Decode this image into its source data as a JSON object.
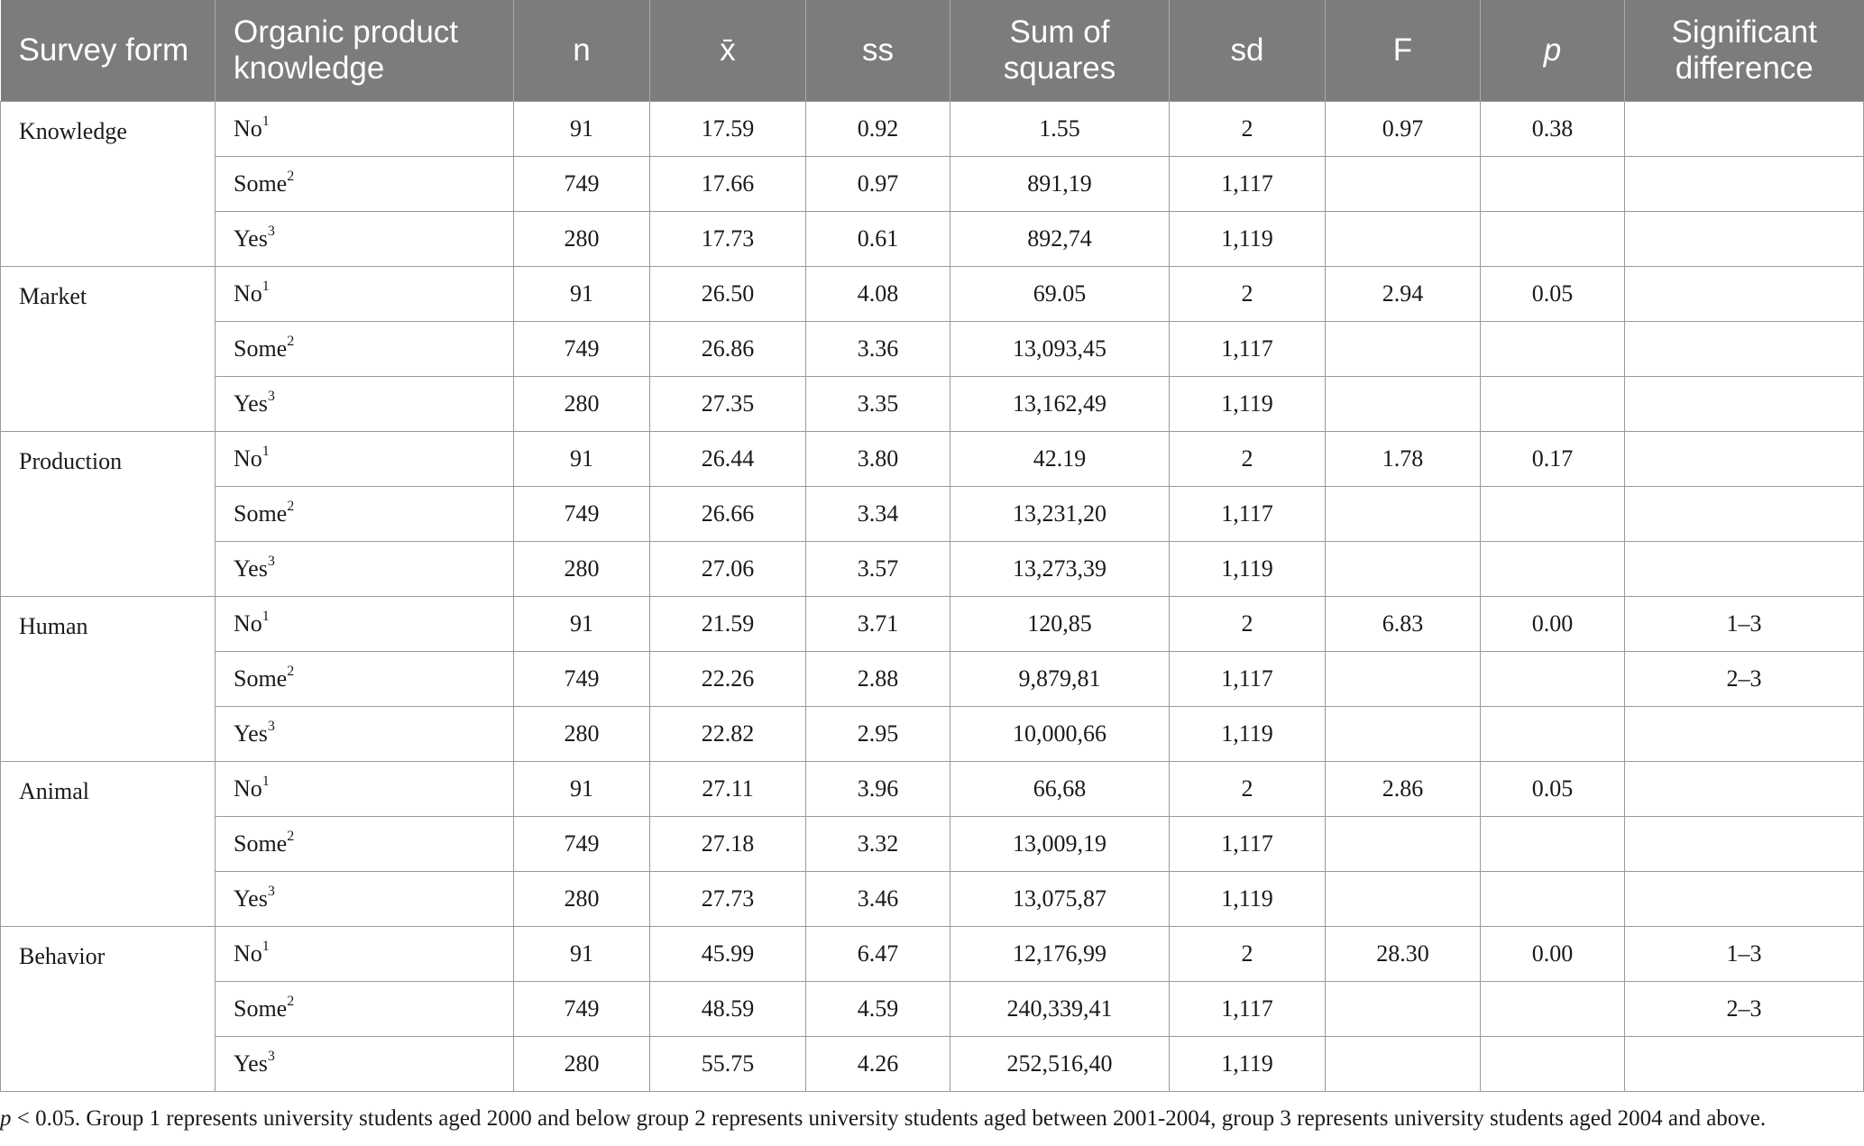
{
  "headers": {
    "survey_form": "Survey form",
    "knowledge": "Organic product knowledge",
    "n": "n",
    "mean": "x̄",
    "ss": "ss",
    "sum_of_squares": "Sum of squares",
    "sd": "sd",
    "f": "F",
    "p": "p",
    "significant_difference": "Significant difference"
  },
  "blocks": [
    {
      "form": "Knowledge",
      "rows": [
        {
          "group": "No",
          "sup": "1",
          "n": "91",
          "mean": "17.59",
          "ss": "0.92",
          "sum_sq": "1.55",
          "sd": "2",
          "f": "0.97",
          "p": "0.38",
          "sig": ""
        },
        {
          "group": "Some",
          "sup": "2",
          "n": "749",
          "mean": "17.66",
          "ss": "0.97",
          "sum_sq": "891,19",
          "sd": "1,117",
          "f": "",
          "p": "",
          "sig": ""
        },
        {
          "group": "Yes",
          "sup": "3",
          "n": "280",
          "mean": "17.73",
          "ss": "0.61",
          "sum_sq": "892,74",
          "sd": "1,119",
          "f": "",
          "p": "",
          "sig": ""
        }
      ]
    },
    {
      "form": "Market",
      "rows": [
        {
          "group": "No",
          "sup": "1",
          "n": "91",
          "mean": "26.50",
          "ss": "4.08",
          "sum_sq": "69.05",
          "sd": "2",
          "f": "2.94",
          "p": "0.05",
          "sig": ""
        },
        {
          "group": "Some",
          "sup": "2",
          "n": "749",
          "mean": "26.86",
          "ss": "3.36",
          "sum_sq": "13,093,45",
          "sd": "1,117",
          "f": "",
          "p": "",
          "sig": ""
        },
        {
          "group": "Yes",
          "sup": "3",
          "n": "280",
          "mean": "27.35",
          "ss": "3.35",
          "sum_sq": "13,162,49",
          "sd": "1,119",
          "f": "",
          "p": "",
          "sig": ""
        }
      ]
    },
    {
      "form": "Production",
      "rows": [
        {
          "group": "No",
          "sup": "1",
          "n": "91",
          "mean": "26.44",
          "ss": "3.80",
          "sum_sq": "42.19",
          "sd": "2",
          "f": "1.78",
          "p": "0.17",
          "sig": ""
        },
        {
          "group": "Some",
          "sup": "2",
          "n": "749",
          "mean": "26.66",
          "ss": "3.34",
          "sum_sq": "13,231,20",
          "sd": "1,117",
          "f": "",
          "p": "",
          "sig": ""
        },
        {
          "group": "Yes",
          "sup": "3",
          "n": "280",
          "mean": "27.06",
          "ss": "3.57",
          "sum_sq": "13,273,39",
          "sd": "1,119",
          "f": "",
          "p": "",
          "sig": ""
        }
      ]
    },
    {
      "form": "Human",
      "rows": [
        {
          "group": "No",
          "sup": "1",
          "n": "91",
          "mean": "21.59",
          "ss": "3.71",
          "sum_sq": "120,85",
          "sd": "2",
          "f": "6.83",
          "p": "0.00",
          "sig": "1–3"
        },
        {
          "group": "Some",
          "sup": "2",
          "n": "749",
          "mean": "22.26",
          "ss": "2.88",
          "sum_sq": "9,879,81",
          "sd": "1,117",
          "f": "",
          "p": "",
          "sig": "2–3"
        },
        {
          "group": "Yes",
          "sup": "3",
          "n": "280",
          "mean": "22.82",
          "ss": "2.95",
          "sum_sq": "10,000,66",
          "sd": "1,119",
          "f": "",
          "p": "",
          "sig": ""
        }
      ]
    },
    {
      "form": "Animal",
      "rows": [
        {
          "group": "No",
          "sup": "1",
          "n": "91",
          "mean": "27.11",
          "ss": "3.96",
          "sum_sq": "66,68",
          "sd": "2",
          "f": "2.86",
          "p": "0.05",
          "sig": ""
        },
        {
          "group": "Some",
          "sup": "2",
          "n": "749",
          "mean": "27.18",
          "ss": "3.32",
          "sum_sq": "13,009,19",
          "sd": "1,117",
          "f": "",
          "p": "",
          "sig": ""
        },
        {
          "group": "Yes",
          "sup": "3",
          "n": "280",
          "mean": "27.73",
          "ss": "3.46",
          "sum_sq": "13,075,87",
          "sd": "1,119",
          "f": "",
          "p": "",
          "sig": ""
        }
      ]
    },
    {
      "form": "Behavior",
      "rows": [
        {
          "group": "No",
          "sup": "1",
          "n": "91",
          "mean": "45.99",
          "ss": "6.47",
          "sum_sq": "12,176,99",
          "sd": "2",
          "f": "28.30",
          "p": "0.00",
          "sig": "1–3"
        },
        {
          "group": "Some",
          "sup": "2",
          "n": "749",
          "mean": "48.59",
          "ss": "4.59",
          "sum_sq": "240,339,41",
          "sd": "1,117",
          "f": "",
          "p": "",
          "sig": "2–3"
        },
        {
          "group": "Yes",
          "sup": "3",
          "n": "280",
          "mean": "55.75",
          "ss": "4.26",
          "sum_sq": "252,516,40",
          "sd": "1,119",
          "f": "",
          "p": "",
          "sig": ""
        }
      ]
    }
  ],
  "footnote": {
    "p_symbol": "p",
    "text": " < 0.05. Group 1 represents university students aged 2000 and below group 2 represents university students aged between 2001-2004, group 3 represents university students aged 2004 and above."
  }
}
